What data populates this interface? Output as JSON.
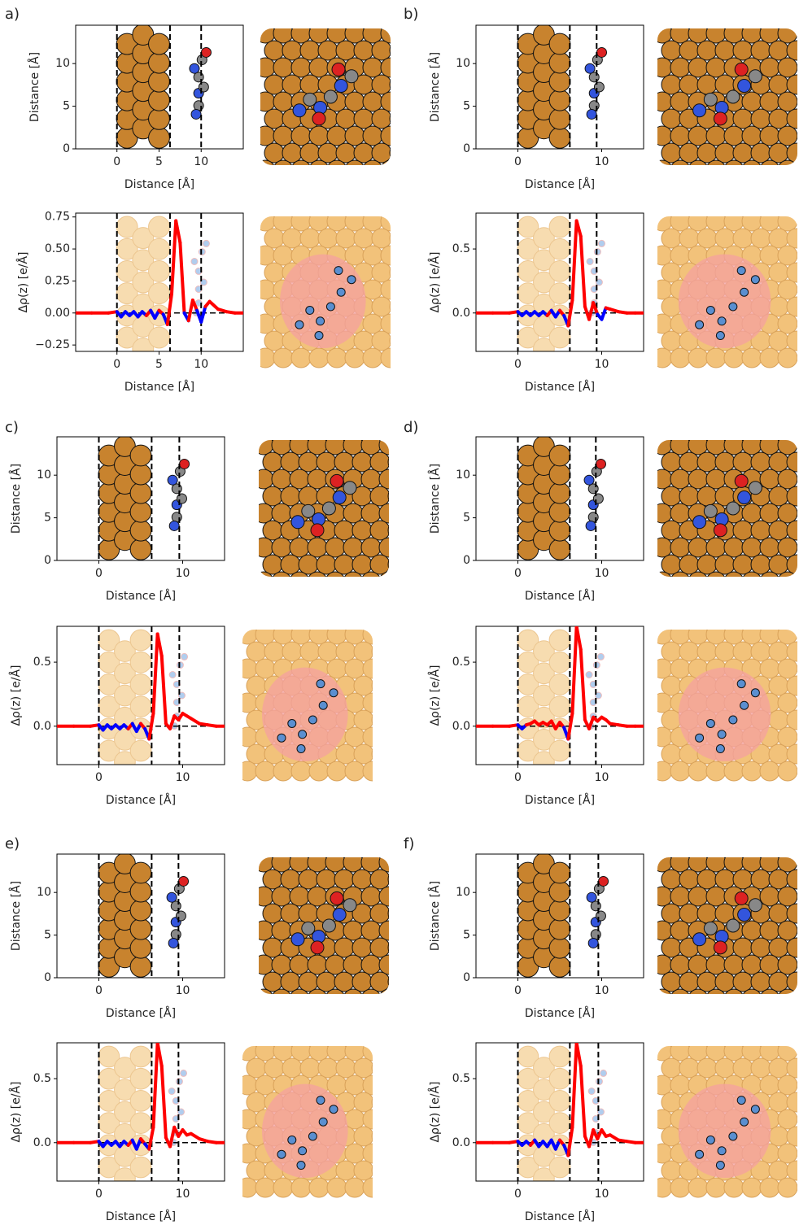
{
  "chart_data": [
    {
      "type": "structure",
      "panel_label": "a)",
      "xlabel": "Distance [Å]",
      "ylabel": "Distance [Å]",
      "xlim": [
        -4.9,
        15
      ],
      "ylim": [
        0,
        14.5
      ],
      "xticks": [
        0,
        5,
        10
      ],
      "yticks": [
        0,
        5,
        10
      ],
      "vlines": [
        0,
        6.3,
        10
      ]
    },
    {
      "type": "line",
      "xlabel": "Distance [Å]",
      "ylabel": "Δρ(z) [e/Å]",
      "xlim": [
        -4.9,
        15
      ],
      "ylim": [
        -0.3,
        0.78
      ],
      "xticks": [
        0,
        5,
        10
      ],
      "yticks": [
        {
          "value": -0.25,
          "label": "−0.25"
        },
        {
          "value": 0,
          "label": "0.00"
        },
        {
          "value": 0.25,
          "label": "0.25"
        },
        {
          "value": 0.5,
          "label": "0.50"
        },
        {
          "value": 0.75,
          "label": "0.75"
        }
      ],
      "vlines": [
        0,
        6.3,
        10
      ],
      "color": "#ff0000",
      "negative_color": "#0000ff",
      "x": [
        -5,
        -3,
        -1,
        0,
        0.5,
        1,
        1.5,
        2,
        2.5,
        3,
        3.5,
        4,
        4.5,
        5,
        5.5,
        6,
        6.5,
        7,
        7.5,
        8,
        8.5,
        9,
        9.5,
        10,
        10.5,
        11,
        12,
        13,
        14,
        15
      ],
      "values": [
        0,
        0,
        0,
        0.01,
        -0.03,
        0.01,
        -0.02,
        0.01,
        -0.03,
        0.01,
        -0.02,
        0.02,
        -0.04,
        0.02,
        -0.01,
        -0.09,
        0.15,
        0.72,
        0.55,
        0.0,
        -0.06,
        0.1,
        0.02,
        -0.07,
        0.05,
        0.09,
        0.03,
        0.01,
        0,
        0
      ]
    },
    {
      "type": "structure",
      "panel_label": "b)",
      "xlabel": "Distance [Å]",
      "ylabel": "Distance [Å]",
      "xlim": [
        -5,
        15
      ],
      "ylim": [
        0,
        14.5
      ],
      "xticks": [
        0,
        10
      ],
      "yticks": [
        0,
        5,
        10
      ],
      "vlines": [
        0,
        6.2,
        9.4
      ]
    },
    {
      "type": "line",
      "xlabel": "Distance [Å]",
      "ylabel": "Δρ(z) [e/Å]",
      "xlim": [
        -5,
        15
      ],
      "ylim": [
        -0.3,
        0.78
      ],
      "xticks": [
        0,
        10
      ],
      "yticks": [
        {
          "value": 0,
          "label": "0.0"
        },
        0.5
      ],
      "vlines": [
        0,
        6.2,
        9.4
      ],
      "color": "#ff0000",
      "negative_color": "#0000ff",
      "x": [
        -5,
        -3,
        -1,
        0,
        0.5,
        1,
        1.5,
        2,
        2.5,
        3,
        3.5,
        4,
        4.5,
        5,
        5.5,
        6,
        6.5,
        7,
        7.5,
        8,
        8.5,
        9,
        9.5,
        10,
        10.5,
        11,
        12,
        13,
        14,
        15
      ],
      "values": [
        0,
        0,
        0,
        0.01,
        -0.02,
        0.01,
        -0.02,
        0.01,
        -0.02,
        0.01,
        -0.02,
        0.02,
        -0.03,
        0.02,
        -0.02,
        -0.1,
        0.1,
        0.72,
        0.6,
        0.05,
        -0.05,
        0.08,
        -0.01,
        -0.05,
        0.04,
        0.03,
        0.01,
        0,
        0,
        0
      ]
    },
    {
      "type": "structure",
      "panel_label": "c)",
      "xlabel": "Distance [Å]",
      "ylabel": "Distance [Å]",
      "xlim": [
        -5,
        15
      ],
      "ylim": [
        0,
        14.5
      ],
      "xticks": [
        0,
        10
      ],
      "yticks": [
        0,
        5,
        10
      ],
      "vlines": [
        0,
        6.3,
        9.6
      ]
    },
    {
      "type": "line",
      "xlabel": "Distance [Å]",
      "ylabel": "Δρ(z) [e/Å]",
      "xlim": [
        -5,
        15
      ],
      "ylim": [
        -0.3,
        0.78
      ],
      "xticks": [
        0,
        10
      ],
      "yticks": [
        {
          "value": 0,
          "label": "0.0"
        },
        0.5
      ],
      "vlines": [
        0,
        6.3,
        9.6
      ],
      "color": "#ff0000",
      "negative_color": "#0000ff",
      "x": [
        -5,
        -3,
        -1,
        0,
        0.5,
        1,
        1.5,
        2,
        2.5,
        3,
        3.5,
        4,
        4.5,
        5,
        5.5,
        6,
        6.5,
        7,
        7.5,
        8,
        8.5,
        9,
        9.5,
        10,
        10.5,
        11,
        12,
        13,
        14,
        15
      ],
      "values": [
        0,
        0,
        0,
        0.01,
        -0.03,
        0.01,
        -0.02,
        0.01,
        -0.02,
        0.01,
        -0.02,
        0.02,
        -0.04,
        0.02,
        -0.02,
        -0.1,
        0.1,
        0.72,
        0.55,
        0.02,
        -0.02,
        0.08,
        0.05,
        0.1,
        0.08,
        0.06,
        0.02,
        0.01,
        0,
        0
      ]
    },
    {
      "type": "structure",
      "panel_label": "d)",
      "xlabel": "Distance [Å]",
      "ylabel": "Distance [Å]",
      "xlim": [
        -5,
        15
      ],
      "ylim": [
        0,
        14.5
      ],
      "xticks": [
        0,
        10
      ],
      "yticks": [
        0,
        5,
        10
      ],
      "vlines": [
        0,
        6.2,
        9.3
      ]
    },
    {
      "type": "line",
      "xlabel": "Distance [Å]",
      "ylabel": "Δρ(z) [e/Å]",
      "xlim": [
        -5,
        15
      ],
      "ylim": [
        -0.3,
        0.78
      ],
      "xticks": [
        0,
        10
      ],
      "yticks": [
        {
          "value": 0,
          "label": "0.0"
        },
        0.5
      ],
      "vlines": [
        0,
        6.2,
        9.3
      ],
      "color": "#ff0000",
      "negative_color": "#0000ff",
      "x": [
        -5,
        -3,
        -1,
        0,
        0.5,
        1,
        1.5,
        2,
        2.5,
        3,
        3.5,
        4,
        4.5,
        5,
        5.5,
        6,
        6.5,
        7,
        7.5,
        8,
        8.5,
        9,
        9.5,
        10,
        10.5,
        11,
        12,
        13,
        14,
        15
      ],
      "values": [
        0,
        0,
        0,
        0.01,
        -0.02,
        0.01,
        0.02,
        0.04,
        0.01,
        0.03,
        0.01,
        0.04,
        -0.02,
        0.03,
        -0.01,
        -0.1,
        0.1,
        0.78,
        0.6,
        0.05,
        -0.02,
        0.07,
        0.04,
        0.07,
        0.05,
        0.02,
        0.01,
        0,
        0,
        0
      ]
    },
    {
      "type": "structure",
      "panel_label": "e)",
      "xlabel": "Distance [Å]",
      "ylabel": "Distance [Å]",
      "xlim": [
        -5,
        15
      ],
      "ylim": [
        0,
        14.5
      ],
      "xticks": [
        0,
        10
      ],
      "yticks": [
        0,
        5,
        10
      ],
      "vlines": [
        0,
        6.3,
        9.5
      ]
    },
    {
      "type": "line",
      "xlabel": "Distance [Å]",
      "ylabel": "Δρ(z) [e/Å]",
      "xlim": [
        -5,
        15
      ],
      "ylim": [
        -0.3,
        0.78
      ],
      "xticks": [
        0,
        10
      ],
      "yticks": [
        {
          "value": 0,
          "label": "0.0"
        },
        0.5
      ],
      "vlines": [
        0,
        6.3,
        9.5
      ],
      "color": "#ff0000",
      "negative_color": "#0000ff",
      "x": [
        -5,
        -3,
        -1,
        0,
        0.5,
        1,
        1.5,
        2,
        2.5,
        3,
        3.5,
        4,
        4.5,
        5,
        5.5,
        6,
        6.5,
        7,
        7.5,
        8,
        8.5,
        9,
        9.5,
        10,
        10.5,
        11,
        12,
        13,
        14,
        15
      ],
      "values": [
        0,
        0,
        0,
        0.01,
        -0.03,
        0.01,
        -0.02,
        0.01,
        -0.03,
        0.01,
        -0.02,
        0.02,
        -0.05,
        0.03,
        -0.01,
        -0.05,
        0.12,
        0.78,
        0.6,
        0.04,
        -0.03,
        0.12,
        0.05,
        0.1,
        0.06,
        0.07,
        0.03,
        0.01,
        0,
        0
      ]
    },
    {
      "type": "structure",
      "panel_label": "f)",
      "xlabel": "Distance [Å]",
      "ylabel": "Distance [Å]",
      "xlim": [
        -5,
        15
      ],
      "ylim": [
        0,
        14.5
      ],
      "xticks": [
        0,
        10
      ],
      "yticks": [
        0,
        5,
        10
      ],
      "vlines": [
        0,
        6.2,
        9.6
      ]
    },
    {
      "type": "line",
      "xlabel": "Distance [Å]",
      "ylabel": "Δρ(z) [e/Å]",
      "xlim": [
        -5,
        15
      ],
      "ylim": [
        -0.3,
        0.78
      ],
      "xticks": [
        0,
        10
      ],
      "yticks": [
        {
          "value": 0,
          "label": "0.0"
        },
        0.5
      ],
      "vlines": [
        0,
        6.2,
        9.6
      ],
      "color": "#ff0000",
      "negative_color": "#0000ff",
      "x": [
        -5,
        -3,
        -1,
        0,
        0.5,
        1,
        1.5,
        2,
        2.5,
        3,
        3.5,
        4,
        4.5,
        5,
        5.5,
        6,
        6.5,
        7,
        7.5,
        8,
        8.5,
        9,
        9.5,
        10,
        10.5,
        11,
        12,
        13,
        14,
        15
      ],
      "values": [
        0,
        0,
        0,
        0.01,
        -0.02,
        0.01,
        -0.02,
        0.02,
        -0.03,
        0.01,
        -0.03,
        0.02,
        -0.05,
        0.02,
        -0.02,
        -0.1,
        0.12,
        0.78,
        0.6,
        0.05,
        -0.03,
        0.1,
        0.03,
        0.1,
        0.05,
        0.06,
        0.02,
        0.01,
        0,
        0
      ]
    }
  ]
}
